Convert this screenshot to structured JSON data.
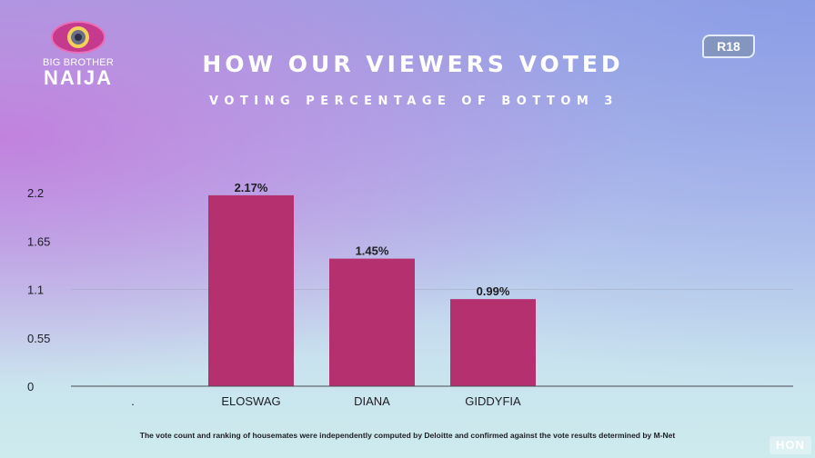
{
  "logo": {
    "line1": "BIG BROTHER",
    "line2": "NAIJA"
  },
  "header": {
    "title": "HOW OUR VIEWERS VOTED",
    "subtitle": "VOTING PERCENTAGE OF BOTTOM 3"
  },
  "rating_badge": "R18",
  "footnote": "The vote count and ranking of housemates were independently computed by Deloitte and confirmed against the vote results determined by M-Net",
  "watermark": "HON",
  "colors": {
    "bar": "#b5306f",
    "text": "#1d1d24",
    "axis": "#4a4a55",
    "grid": "#9aa0b4"
  },
  "chart_data": {
    "type": "bar",
    "categories": [
      ".",
      "ELOSWAG",
      "DIANA",
      "GIDDYFIA"
    ],
    "values": [
      null,
      2.17,
      1.45,
      0.99
    ],
    "data_labels": [
      "",
      "2.17%",
      "1.45%",
      "0.99%"
    ],
    "yticks": [
      0,
      0.55,
      1.1,
      1.65,
      2.2
    ],
    "ytick_labels": [
      "0",
      "0.55",
      "1.1",
      "1.65",
      "2.2"
    ],
    "ylim": [
      0,
      2.2
    ],
    "grid": false,
    "legend": "none"
  }
}
